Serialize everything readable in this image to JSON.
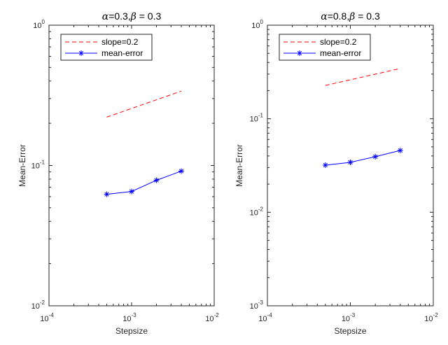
{
  "chart_data": [
    {
      "type": "line",
      "title": "α=0.3,β = 0.3",
      "title_parts": {
        "alpha_symbol": "α",
        "alpha_value": "=0.3,",
        "beta_symbol": "β",
        "beta_value": " = 0.3"
      },
      "xlabel": "Stepsize",
      "ylabel": "Mean-Error",
      "xscale": "log",
      "yscale": "log",
      "xlim": [
        0.0001,
        0.01
      ],
      "ylim": [
        0.01,
        1
      ],
      "x_ticks": [
        {
          "base": "10",
          "exp": "-4",
          "value": 0.0001
        },
        {
          "base": "10",
          "exp": "-3",
          "value": 0.001
        },
        {
          "base": "10",
          "exp": "-2",
          "value": 0.01
        }
      ],
      "y_ticks": [
        {
          "base": "10",
          "exp": "-2",
          "value": 0.01
        },
        {
          "base": "10",
          "exp": "-1",
          "value": 0.1
        },
        {
          "base": "10",
          "exp": "0",
          "value": 1
        }
      ],
      "legend_position": "top-left",
      "grid": false,
      "series": [
        {
          "name": "slope=0.2",
          "style": "dashed",
          "color": "#ff0000",
          "marker": "none",
          "x": [
            0.0005,
            0.004
          ],
          "y": [
            0.221,
            0.339
          ]
        },
        {
          "name": "mean-error",
          "style": "solid",
          "color": "#0000ff",
          "marker": "asterisk",
          "x": [
            0.0005,
            0.001,
            0.002,
            0.004
          ],
          "y": [
            0.0624,
            0.0653,
            0.0785,
            0.0912
          ]
        }
      ]
    },
    {
      "type": "line",
      "title": "α=0.8,β = 0.3",
      "title_parts": {
        "alpha_symbol": "α",
        "alpha_value": "=0.8,",
        "beta_symbol": "β",
        "beta_value": " = 0.3"
      },
      "xlabel": "Stepsize",
      "ylabel": "Mean-Error",
      "xscale": "log",
      "yscale": "log",
      "xlim": [
        0.0001,
        0.01
      ],
      "ylim": [
        0.001,
        1
      ],
      "x_ticks": [
        {
          "base": "10",
          "exp": "-4",
          "value": 0.0001
        },
        {
          "base": "10",
          "exp": "-3",
          "value": 0.001
        },
        {
          "base": "10",
          "exp": "-2",
          "value": 0.01
        }
      ],
      "y_ticks": [
        {
          "base": "10",
          "exp": "-3",
          "value": 0.001
        },
        {
          "base": "10",
          "exp": "-2",
          "value": 0.01
        },
        {
          "base": "10",
          "exp": "-1",
          "value": 0.1
        },
        {
          "base": "10",
          "exp": "0",
          "value": 1
        }
      ],
      "legend_position": "top-left",
      "grid": false,
      "series": [
        {
          "name": "slope=0.2",
          "style": "dashed",
          "color": "#ff0000",
          "marker": "none",
          "x": [
            0.0005,
            0.004
          ],
          "y": [
            0.227,
            0.344
          ]
        },
        {
          "name": "mean-error",
          "style": "solid",
          "color": "#0000ff",
          "marker": "asterisk",
          "x": [
            0.0005,
            0.001,
            0.002,
            0.004
          ],
          "y": [
            0.0319,
            0.0342,
            0.0393,
            0.0458
          ]
        }
      ]
    }
  ]
}
